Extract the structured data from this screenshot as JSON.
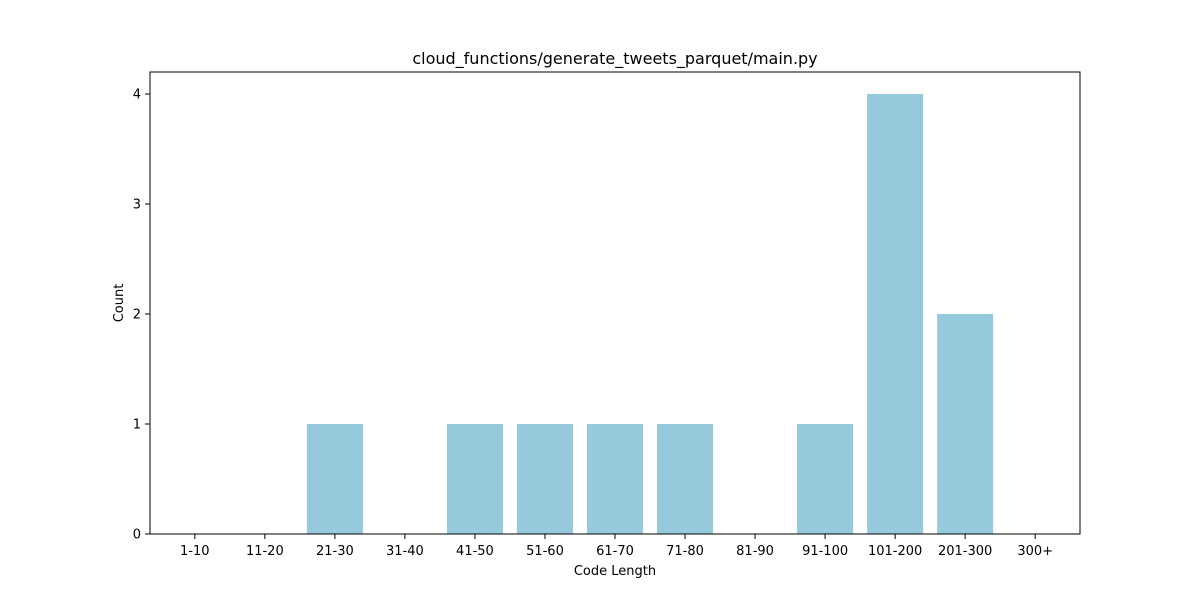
{
  "chart_data": {
    "type": "bar",
    "title": "cloud_functions/generate_tweets_parquet/main.py",
    "xlabel": "Code Length",
    "ylabel": "Count",
    "categories": [
      "1-10",
      "11-20",
      "21-30",
      "31-40",
      "41-50",
      "51-60",
      "61-70",
      "71-80",
      "81-90",
      "91-100",
      "101-200",
      "201-300",
      "300+"
    ],
    "values": [
      0,
      0,
      1,
      0,
      1,
      1,
      1,
      1,
      0,
      1,
      4,
      2,
      0
    ],
    "ylim": [
      0,
      4.2
    ],
    "yticks": [
      0,
      1,
      2,
      3,
      4
    ],
    "grid": false,
    "bar_color": "#96c9dc"
  }
}
